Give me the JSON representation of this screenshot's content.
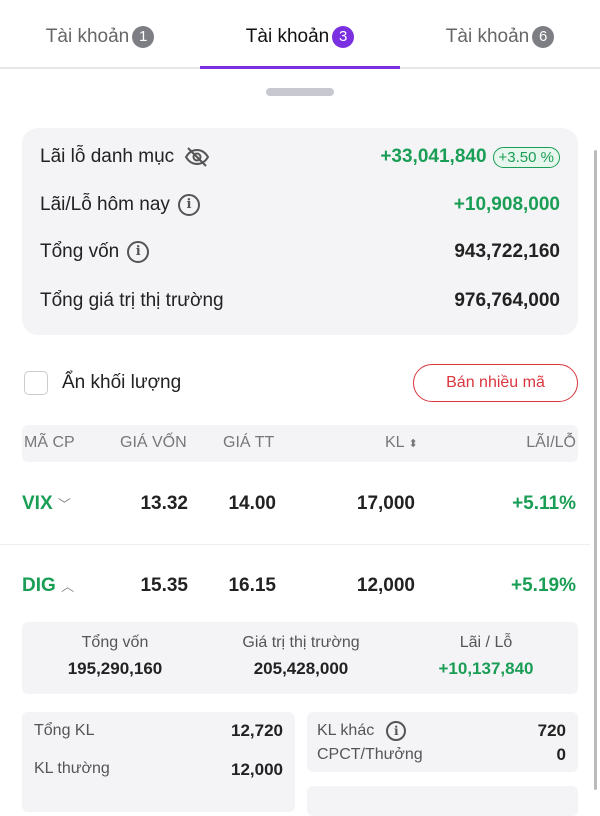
{
  "tabs": [
    {
      "label": "Tài khoản",
      "badge": "1"
    },
    {
      "label": "Tài khoản",
      "badge": "3",
      "active": true
    },
    {
      "label": "Tài khoản",
      "badge": "6"
    }
  ],
  "summary": {
    "pnl_label": "Lãi lỗ danh mục",
    "pnl_value": "+33,041,840",
    "pnl_pct": "+3.50 %",
    "today_label": "Lãi/Lỗ hôm nay",
    "today_value": "+10,908,000",
    "capital_label": "Tổng vốn",
    "capital_value": "943,722,160",
    "market_label": "Tổng giá trị thị trường",
    "market_value": "976,764,000"
  },
  "hide_volume_label": "Ẩn khối lượng",
  "sell_multi_label": "Bán nhiều mã",
  "table": {
    "headers": [
      "MÃ CP",
      "GIÁ VỐN",
      "GIÁ TT",
      "KL",
      "LÃI/LỖ"
    ],
    "rows": [
      {
        "symbol": "VIX",
        "cost": "13.32",
        "price": "14.00",
        "qty": "17,000",
        "pnl": "+5.11%",
        "expanded": false
      },
      {
        "symbol": "DIG",
        "cost": "15.35",
        "price": "16.15",
        "qty": "12,000",
        "pnl": "+5.19%",
        "expanded": true
      }
    ]
  },
  "detail": {
    "capital_label": "Tổng vốn",
    "capital_value": "195,290,160",
    "market_label": "Giá trị thị trường",
    "market_value": "205,428,000",
    "pnl_label": "Lãi / Lỗ",
    "pnl_value": "+10,137,840",
    "total_qty_label": "Tổng KL",
    "total_qty_value": "12,720",
    "normal_qty_label": "KL thường",
    "normal_qty_value": "12,000",
    "other_qty_label": "KL khác",
    "other_qty_value": "720",
    "bonus_label": "CPCT/Thưởng",
    "bonus_value": "0"
  },
  "colors": {
    "accent": "#7a2fe0",
    "gain": "#1a9e55",
    "sell": "#d9363e"
  }
}
